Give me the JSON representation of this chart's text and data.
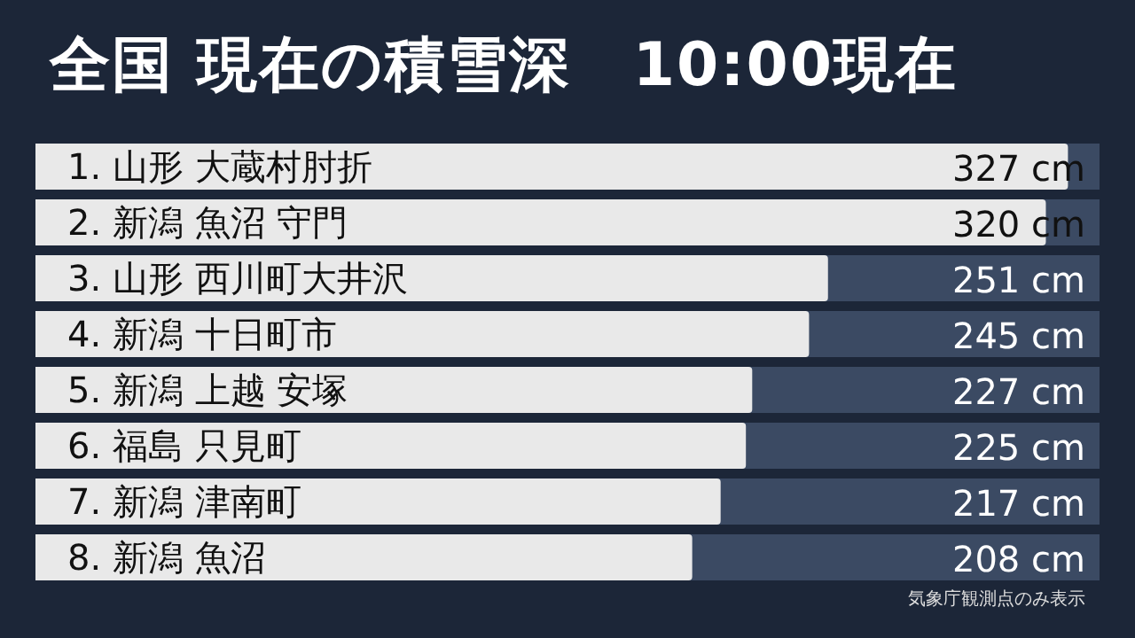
{
  "chart_data": {
    "type": "bar",
    "orientation": "horizontal",
    "title": "全国 現在の積雪深　10:00現在",
    "categories": [
      "1. 山形 大蔵村肘折",
      "2. 新潟 魚沼 守門",
      "3. 山形 西川町大井沢",
      "4. 新潟 十日町市",
      "5. 新潟 上越 安塚",
      "6. 福島 只見町",
      "7. 新潟 津南町",
      "8. 新潟 魚沼"
    ],
    "values": [
      327,
      320,
      251,
      245,
      227,
      225,
      217,
      208
    ],
    "value_labels": [
      "327 cm",
      "320 cm",
      "251 cm",
      "245 cm",
      "227 cm",
      "225 cm",
      "217 cm",
      "208 cm"
    ],
    "color": "#e9e9e9",
    "xlim": [
      0,
      337
    ],
    "tick_labels": false,
    "grid": false,
    "annotations": [
      "気象庁観測点のみ表示"
    ]
  }
}
